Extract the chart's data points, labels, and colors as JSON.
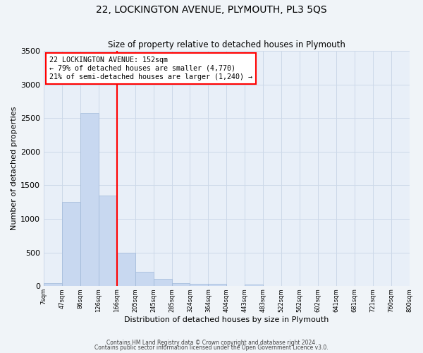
{
  "title": "22, LOCKINGTON AVENUE, PLYMOUTH, PL3 5QS",
  "subtitle": "Size of property relative to detached houses in Plymouth",
  "xlabel": "Distribution of detached houses by size in Plymouth",
  "ylabel": "Number of detached properties",
  "bin_labels": [
    "7sqm",
    "47sqm",
    "86sqm",
    "126sqm",
    "166sqm",
    "205sqm",
    "245sqm",
    "285sqm",
    "324sqm",
    "364sqm",
    "404sqm",
    "443sqm",
    "483sqm",
    "522sqm",
    "562sqm",
    "602sqm",
    "641sqm",
    "681sqm",
    "721sqm",
    "760sqm",
    "800sqm"
  ],
  "bar_values": [
    50,
    1250,
    2580,
    1350,
    500,
    210,
    110,
    45,
    35,
    30,
    5,
    25,
    0,
    0,
    0,
    0,
    0,
    0,
    0,
    0
  ],
  "bar_color": "#c8d8f0",
  "bar_edge_color": "#a0b8d8",
  "vline_color": "red",
  "ylim": [
    0,
    3500
  ],
  "annotation_title": "22 LOCKINGTON AVENUE: 152sqm",
  "annotation_line1": "← 79% of detached houses are smaller (4,770)",
  "annotation_line2": "21% of semi-detached houses are larger (1,240) →",
  "annotation_box_color": "#ffffff",
  "annotation_box_edge": "red",
  "grid_color": "#ccd8e8",
  "bg_color": "#e8eff8",
  "fig_bg_color": "#f0f4f8",
  "footer1": "Contains HM Land Registry data © Crown copyright and database right 2024.",
  "footer2": "Contains public sector information licensed under the Open Government Licence v3.0."
}
